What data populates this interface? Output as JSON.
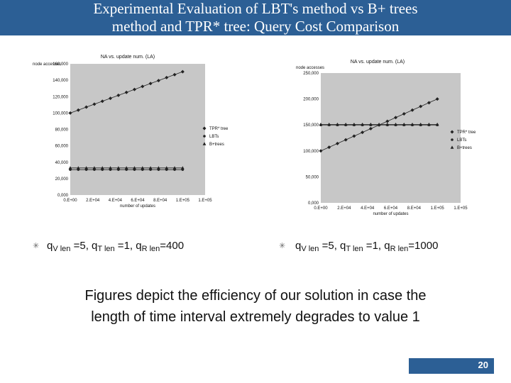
{
  "slide": {
    "title_line1": "Experimental Evaluation of LBT's method vs B+ trees",
    "title_line2": "method and TPR* tree: Query Cost Comparison",
    "caption_line1": "Figures depict the efficiency of our solution in case the",
    "caption_line2": "length of time interval extremely degrades to value 1",
    "page_number": "20",
    "accent_color": "#2c5f95",
    "bullets": [
      {
        "q1": "q",
        "s1": "V len",
        "t1": " =5, q",
        "s2": "T len",
        "t2": " =1, q",
        "s3": "R len",
        "t3": "=400"
      },
      {
        "q1": "q",
        "s1": "V len",
        "t1": " =5, q",
        "s2": "T len",
        "t2": " =1, q",
        "s3": "R len",
        "t3": "=1000"
      }
    ]
  },
  "chart_data": [
    {
      "type": "line",
      "title": "NA vs. update num. (LA)",
      "ylabel": "node accesses",
      "xlabel": "number of updates",
      "ylim": [
        0,
        160000
      ],
      "yticks": [
        "0,000",
        "20,000",
        "40,000",
        "60,000",
        "80,000",
        "100,000",
        "120,000",
        "140,000",
        "160,000"
      ],
      "xticks": [
        "0.E+00",
        "2.E+04",
        "4.E+04",
        "6.E+04",
        "8.E+04",
        "1.E+05",
        "1.E+05"
      ],
      "legend": [
        "TPR* tree",
        "LBTs",
        "B+trees"
      ],
      "legend_position": "right",
      "series": [
        {
          "name": "TPR* tree",
          "marker": "diamond",
          "values": [
            100000,
            103600,
            107200,
            110800,
            114400,
            118000,
            121600,
            125200,
            128800,
            132400,
            136000,
            139600,
            143200,
            146800,
            150400
          ]
        },
        {
          "name": "LBTs",
          "marker": "circle",
          "values": [
            31000,
            31000,
            31000,
            31000,
            31000,
            31000,
            31000,
            31000,
            31000,
            31000,
            31000,
            31000,
            31000,
            31000,
            31000
          ]
        },
        {
          "name": "B+trees",
          "marker": "triangle",
          "values": [
            33000,
            33000,
            33000,
            33000,
            33000,
            33000,
            33000,
            33000,
            33000,
            33000,
            33000,
            33000,
            33000,
            33000,
            33000
          ]
        }
      ]
    },
    {
      "type": "line",
      "title": "NA vs. update num. (LA)",
      "ylabel": "node accesses",
      "xlabel": "number of updates",
      "ylim": [
        0,
        250000
      ],
      "yticks": [
        "0,000",
        "50,000",
        "100,000",
        "150,000",
        "200,000",
        "250,000"
      ],
      "xticks": [
        "0.E+00",
        "2.E+04",
        "4.E+04",
        "6.E+04",
        "8.E+04",
        "1.E+05",
        "1.E+05"
      ],
      "legend": [
        "TPR* tree",
        "LBTs",
        "B+trees"
      ],
      "legend_position": "right",
      "series": [
        {
          "name": "TPR* tree",
          "marker": "diamond",
          "values": [
            100000,
            107143,
            114286,
            121429,
            128571,
            135714,
            142857,
            150000,
            157143,
            164286,
            171429,
            178571,
            185714,
            192857,
            200000
          ]
        },
        {
          "name": "LBTs",
          "marker": "circle",
          "values": [
            150000,
            150000,
            150000,
            150000,
            150000,
            150000,
            150000,
            150000,
            150000,
            150000,
            150000,
            150000,
            150000,
            150000,
            150000
          ]
        },
        {
          "name": "B+trees",
          "marker": "triangle",
          "values": [
            151000,
            151000,
            151000,
            151000,
            151000,
            151000,
            151000,
            151000,
            151000,
            151000,
            151000,
            151000,
            151000,
            151000,
            151000
          ]
        }
      ]
    }
  ]
}
